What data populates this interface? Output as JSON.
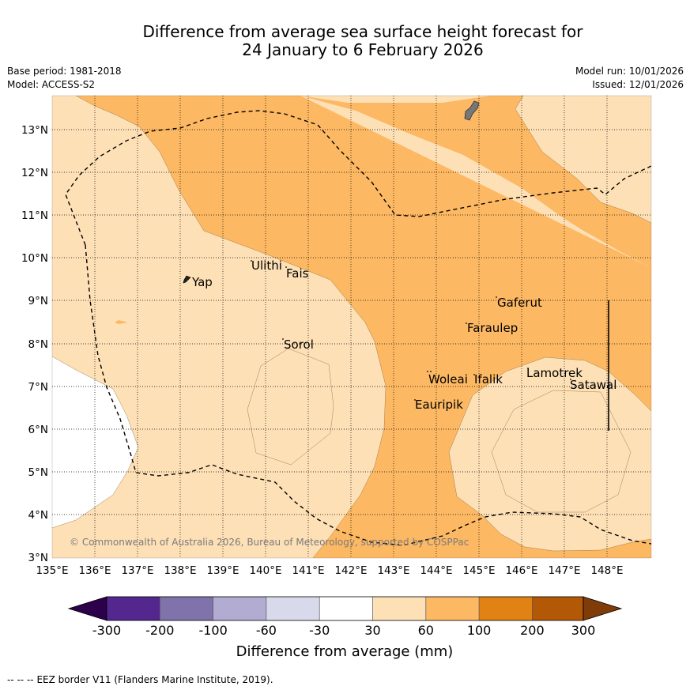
{
  "title": {
    "line1": "Difference from average sea surface height forecast for",
    "line2": "24 January to 6 February 2026"
  },
  "meta": {
    "base_period": "Base period: 1981-2018",
    "model": "Model: ACCESS-S2",
    "model_run": "Model run: 10/01/2026",
    "issued": "Issued: 12/01/2026"
  },
  "map": {
    "lon_ticks": [
      "135°E",
      "136°E",
      "137°E",
      "138°E",
      "139°E",
      "140°E",
      "141°E",
      "142°E",
      "143°E",
      "144°E",
      "145°E",
      "146°E",
      "147°E",
      "148°E"
    ],
    "lat_ticks": [
      "13°N",
      "12°N",
      "11°N",
      "10°N",
      "9°N",
      "8°N",
      "7°N",
      "6°N",
      "5°N",
      "4°N",
      "3°N"
    ],
    "places": {
      "ulithi": "Ulithi",
      "fais": "Fais",
      "yap": "Yap",
      "gaferut": "Gaferut",
      "faraulep": "Faraulep",
      "sorol": "Sorol",
      "woleai": "Woleai",
      "ifalik": "Ifalik",
      "lamotrek": "Lamotrek",
      "satawal": "Satawal",
      "eauripik": "Eauripik"
    },
    "copyright": "© Commonwealth of Australia 2026, Bureau of Meteorology, supported by COSPPac"
  },
  "colorbar": {
    "ticks": [
      "-300",
      "-200",
      "-100",
      "-60",
      "-30",
      "30",
      "60",
      "100",
      "200",
      "300"
    ],
    "label": "Difference from average (mm)",
    "colors": [
      "#54278f",
      "#8073ac",
      "#b2abd2",
      "#d8daeb",
      "#ffffff",
      "#fee0b6",
      "#fdb863",
      "#e08214",
      "#b35806"
    ],
    "under_color": "#2d004b",
    "over_color": "#7f3b08"
  },
  "footer": {
    "legend_symbol": "--  --  --",
    "legend_text": "EEZ border V11 (Flanders Marine Institute, 2019)."
  }
}
